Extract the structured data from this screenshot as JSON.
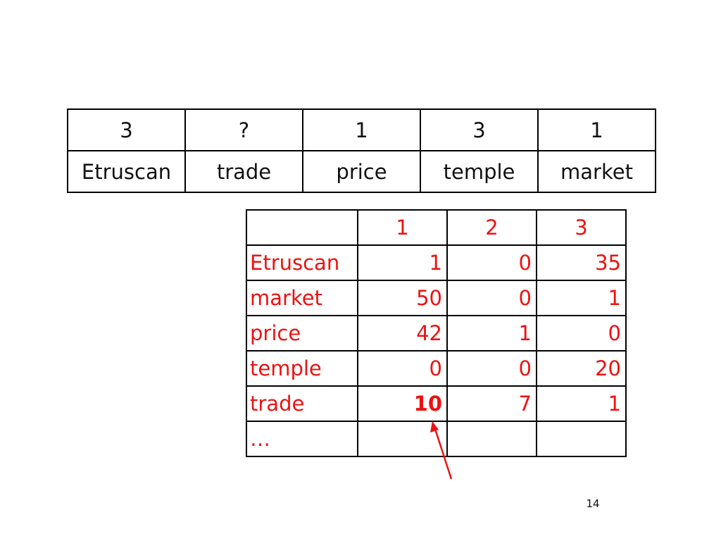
{
  "top_table": {
    "counts": [
      "3",
      "?",
      "1",
      "3",
      "1"
    ],
    "words": [
      "Etruscan",
      "trade",
      "price",
      "temple",
      "market"
    ]
  },
  "count_table": {
    "headers": [
      "",
      "1",
      "2",
      "3"
    ],
    "rows": [
      {
        "word": "Etruscan",
        "values": [
          "1",
          "0",
          "35"
        ]
      },
      {
        "word": "market",
        "values": [
          "50",
          "0",
          "1"
        ]
      },
      {
        "word": "price",
        "values": [
          "42",
          "1",
          "0"
        ]
      },
      {
        "word": "temple",
        "values": [
          "0",
          "0",
          "20"
        ]
      },
      {
        "word": "trade",
        "values": [
          "10",
          "7",
          "1"
        ]
      },
      {
        "word": "…",
        "values": [
          "",
          "",
          ""
        ]
      }
    ]
  },
  "colors": {
    "highlight": "#ee1111",
    "text": "#111111"
  },
  "slide": {
    "page_number": "14"
  }
}
